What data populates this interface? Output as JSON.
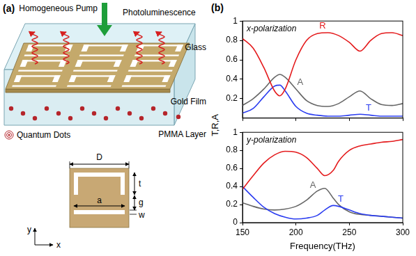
{
  "panel_a": {
    "label": "(a)",
    "pump": "Homogeneous Pump",
    "emission": "Photoluminescence",
    "layers": {
      "glass": "Glass",
      "gold": "Gold Film",
      "pmma": "PMMA Layer"
    },
    "quantum_dots": "Quantum Dots",
    "unit_cell": {
      "D": "D",
      "t": "t",
      "g": "g",
      "a": "a",
      "w": "w",
      "x_axis": "x",
      "y_axis": "y"
    }
  },
  "panel_b": {
    "label": "(b)",
    "ylabel": "T,R,A"
  },
  "chart_data": [
    {
      "type": "line",
      "title": "x-polarization",
      "x": [
        150,
        160,
        170,
        180,
        185,
        190,
        200,
        210,
        220,
        230,
        240,
        250,
        260,
        270,
        280,
        290,
        300
      ],
      "xlim": [
        150,
        300
      ],
      "xticks": [
        150,
        200,
        250,
        300
      ],
      "ylim": [
        0,
        1
      ],
      "yticks": [
        0.2,
        0.4,
        0.6,
        0.8,
        1
      ],
      "grid": false,
      "tick_labels": "y",
      "series": [
        {
          "name": "R",
          "color": "#e41a1c",
          "label_at": [
            225,
            0.9
          ],
          "values": [
            0.82,
            0.72,
            0.52,
            0.28,
            0.23,
            0.3,
            0.6,
            0.8,
            0.87,
            0.88,
            0.85,
            0.78,
            0.69,
            0.8,
            0.87,
            0.88,
            0.85
          ]
        },
        {
          "name": "T",
          "color": "#2a3cf0",
          "label_at": [
            268,
            0.06
          ],
          "values": [
            0.05,
            0.1,
            0.22,
            0.33,
            0.34,
            0.28,
            0.12,
            0.05,
            0.03,
            0.02,
            0.02,
            0.03,
            0.04,
            0.03,
            0.02,
            0.02,
            0.02
          ]
        },
        {
          "name": "A",
          "color": "#666666",
          "label_at": [
            204,
            0.32
          ],
          "values": [
            0.13,
            0.2,
            0.3,
            0.42,
            0.45,
            0.42,
            0.3,
            0.18,
            0.13,
            0.12,
            0.15,
            0.22,
            0.28,
            0.2,
            0.14,
            0.13,
            0.15
          ]
        }
      ]
    },
    {
      "type": "line",
      "title": "y-polarization",
      "xlabel": "Frequency(THz)",
      "x": [
        150,
        160,
        170,
        180,
        190,
        200,
        210,
        220,
        227,
        235,
        240,
        250,
        260,
        270,
        280,
        290,
        300
      ],
      "xlim": [
        150,
        300
      ],
      "xticks": [
        150,
        200,
        250,
        300
      ],
      "ylim": [
        0,
        1
      ],
      "yticks": [
        0,
        0.2,
        0.4,
        0.6,
        0.8,
        1
      ],
      "grid": false,
      "series": [
        {
          "name": "R",
          "color": "#e41a1c",
          "values": [
            0.37,
            0.52,
            0.66,
            0.75,
            0.79,
            0.78,
            0.72,
            0.6,
            0.52,
            0.58,
            0.68,
            0.8,
            0.85,
            0.87,
            0.89,
            0.9,
            0.92
          ]
        },
        {
          "name": "T",
          "color": "#2a3cf0",
          "label_at": [
            242,
            0.21
          ],
          "values": [
            0.4,
            0.28,
            0.17,
            0.1,
            0.06,
            0.04,
            0.05,
            0.08,
            0.14,
            0.19,
            0.18,
            0.14,
            0.1,
            0.08,
            0.07,
            0.06,
            0.05
          ]
        },
        {
          "name": "A",
          "color": "#666666",
          "label_at": [
            216,
            0.36
          ],
          "values": [
            0.22,
            0.18,
            0.15,
            0.14,
            0.15,
            0.18,
            0.25,
            0.35,
            0.38,
            0.27,
            0.2,
            0.12,
            0.09,
            0.08,
            0.07,
            0.06,
            0.05
          ]
        }
      ]
    }
  ]
}
